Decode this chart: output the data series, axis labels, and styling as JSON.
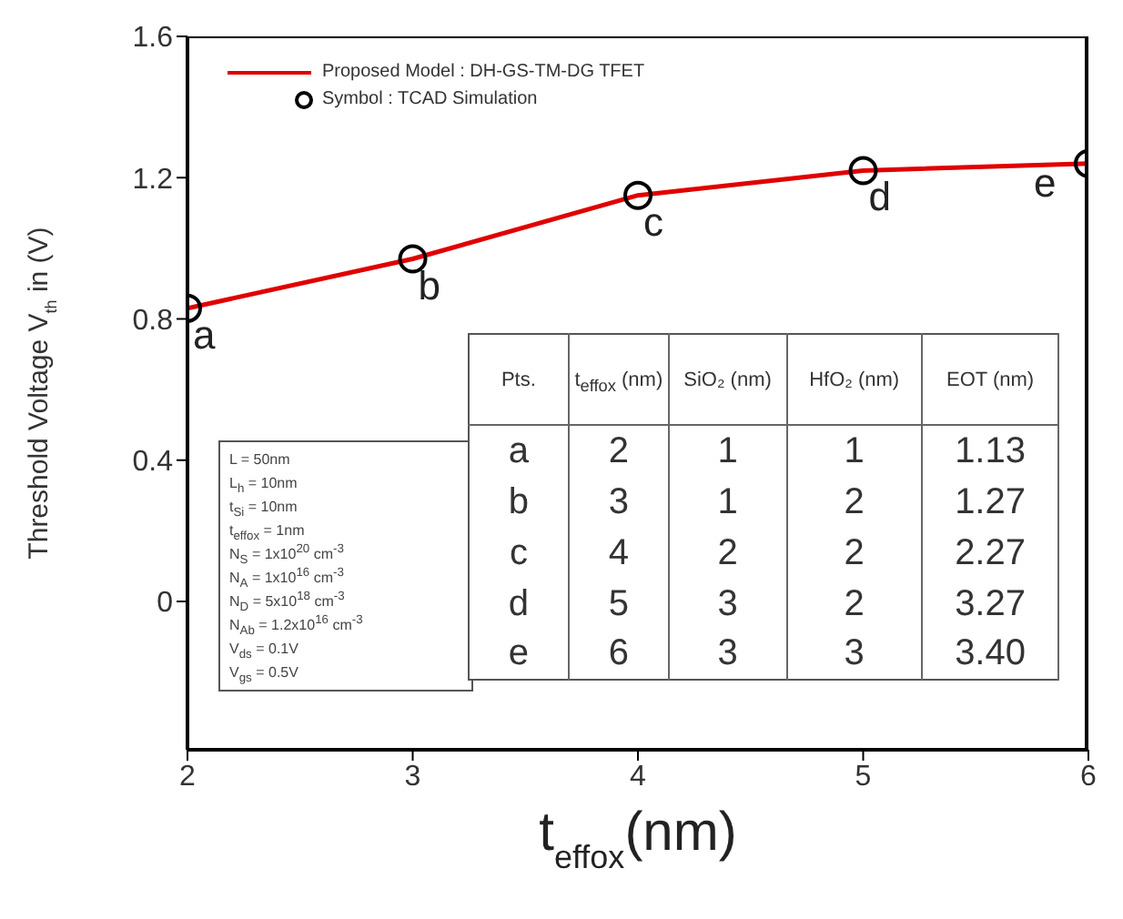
{
  "chart_data": {
    "type": "line",
    "xlabel": "t$_{effox}$(nm)",
    "ylabel": "Threshold Voltage V$_{th}$ in (V)",
    "x": [
      2,
      3,
      4,
      5,
      6
    ],
    "xlim": [
      2,
      6
    ],
    "xticks": [
      2,
      3,
      4,
      5,
      6
    ],
    "ylim": [
      -0.42,
      1.6
    ],
    "yticks": [
      0,
      0.4,
      0.8,
      1.2,
      1.6
    ],
    "grid": false,
    "legend": "top left",
    "series": [
      {
        "name": "Proposed Model : DH-GS-TM-DG TFET",
        "color": "#e00000",
        "marker": "none",
        "line_style": "solid",
        "values": [
          0.83,
          0.97,
          1.15,
          1.22,
          1.24
        ]
      },
      {
        "name": "Symbol : TCAD Simulation",
        "type": "scatter",
        "color": "#000000",
        "marker": "circle",
        "values": [
          0.83,
          0.97,
          1.15,
          1.22,
          1.24
        ]
      }
    ],
    "annotations": [
      {
        "text": "a",
        "x": 2,
        "y": 0.83
      },
      {
        "text": "b",
        "x": 3,
        "y": 0.97
      },
      {
        "text": "c",
        "x": 4,
        "y": 1.15
      },
      {
        "text": "d",
        "x": 5,
        "y": 1.22
      },
      {
        "text": "e",
        "x": 6,
        "y": 1.24
      },
      "L = 50nm",
      "L$_{h}$ = 10nm",
      "t$_{Si}$ = 10nm",
      "t$_{effox}$ = 1nm",
      "N$_{S}$ = 1x10$^{20}$ cm$^{-3}$",
      "N$_{A}$ = 1x10$^{16}$ cm$^{-3}$",
      "N$_{D}$ = 5x10$^{18}$ cm$^{-3}$",
      "N$_{Ab}$ = 1.2x10$^{16}$ cm$^{-3}$",
      "V$_{ds}$ = 0.1V",
      "V$_{gs}$ = 0.5V",
      "Pts.",
      "t$_{effox}$ (nm)",
      "SiO₂ (nm)",
      "HfO₂ (nm)",
      "EOT (nm)",
      "a",
      "2",
      "1",
      "1",
      "1.13",
      "b",
      "3",
      "1",
      "2",
      "1.27",
      "c",
      "4",
      "2",
      "2",
      "2.27",
      "d",
      "5",
      "3",
      "2",
      "3.27",
      "e",
      "6",
      "3",
      "3",
      "3.40"
    ]
  }
}
